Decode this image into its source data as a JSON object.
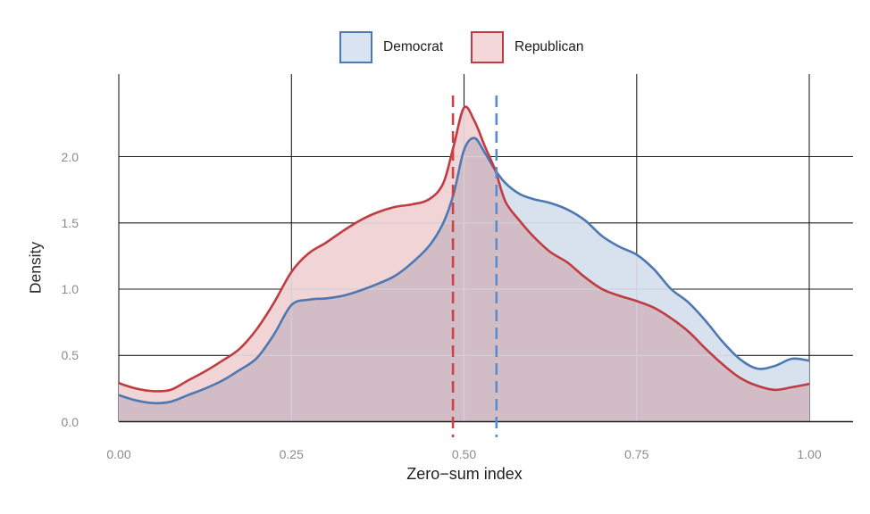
{
  "figure": {
    "background": "#ffffff"
  },
  "legend": {
    "items": [
      {
        "label": "Democrat",
        "stroke": "#4d78b2",
        "fill": "#d9e3f1"
      },
      {
        "label": "Republican",
        "stroke": "#bf3c42",
        "fill": "#f2d8da"
      }
    ]
  },
  "axes": {
    "tick_color": "#8b8b8b",
    "title_color": "#1f1f1f",
    "grid_color": "#1f1f1f",
    "grid_light_color": "#d2d0d9",
    "axis_line_color": "#1f1f1f"
  },
  "chart_data": {
    "type": "area",
    "title": "",
    "xlabel": "Zero−sum index",
    "ylabel": "Density",
    "legend_position": "top-center",
    "grid": true,
    "xlim": [
      0,
      1.064
    ],
    "ylim": [
      0,
      2.62
    ],
    "x_ticks": {
      "values": [
        0,
        0.25,
        0.5,
        0.75,
        1
      ],
      "labels": [
        "0.00",
        "0.25",
        "0.50",
        "0.75",
        "1.00"
      ]
    },
    "y_ticks": {
      "values": [
        0,
        0.5,
        1,
        1.5,
        2
      ],
      "labels": [
        "0.0",
        "0.5",
        "1.0",
        "1.5",
        "2.0"
      ]
    },
    "x": [
      0,
      0.025,
      0.05,
      0.075,
      0.1,
      0.125,
      0.15,
      0.175,
      0.2,
      0.225,
      0.25,
      0.275,
      0.3,
      0.325,
      0.35,
      0.375,
      0.4,
      0.425,
      0.45,
      0.47,
      0.485,
      0.5,
      0.515,
      0.53,
      0.545,
      0.56,
      0.58,
      0.6,
      0.625,
      0.65,
      0.675,
      0.7,
      0.725,
      0.75,
      0.775,
      0.8,
      0.825,
      0.85,
      0.875,
      0.9,
      0.925,
      0.95,
      0.975,
      1
    ],
    "series": [
      {
        "name": "Democrat",
        "color": "#4d78b2",
        "fill_rgba": "rgba(78,121,178,0.22)",
        "values": [
          0.2,
          0.16,
          0.14,
          0.15,
          0.2,
          0.25,
          0.31,
          0.39,
          0.48,
          0.66,
          0.88,
          0.92,
          0.93,
          0.95,
          0.99,
          1.04,
          1.1,
          1.2,
          1.33,
          1.5,
          1.72,
          2.05,
          2.14,
          2.03,
          1.9,
          1.8,
          1.72,
          1.68,
          1.65,
          1.6,
          1.52,
          1.4,
          1.32,
          1.26,
          1.15,
          1.0,
          0.9,
          0.76,
          0.6,
          0.47,
          0.4,
          0.42,
          0.475,
          0.46
        ]
      },
      {
        "name": "Republican",
        "color": "#bf3c42",
        "fill_rgba": "rgba(191,60,66,0.22)",
        "values": [
          0.29,
          0.25,
          0.23,
          0.24,
          0.31,
          0.38,
          0.46,
          0.55,
          0.7,
          0.9,
          1.13,
          1.27,
          1.35,
          1.44,
          1.52,
          1.58,
          1.62,
          1.64,
          1.68,
          1.8,
          2.08,
          2.37,
          2.27,
          2.08,
          1.9,
          1.66,
          1.52,
          1.4,
          1.28,
          1.2,
          1.09,
          1.0,
          0.95,
          0.91,
          0.86,
          0.78,
          0.68,
          0.55,
          0.43,
          0.33,
          0.27,
          0.24,
          0.26,
          0.285
        ]
      }
    ],
    "mean_lines": [
      {
        "name": "Republican mean",
        "x": 0.484,
        "color": "#cb4146",
        "style": "dashed"
      },
      {
        "name": "Democrat mean",
        "x": 0.547,
        "color": "#5a8ccd",
        "style": "dashed"
      }
    ]
  }
}
